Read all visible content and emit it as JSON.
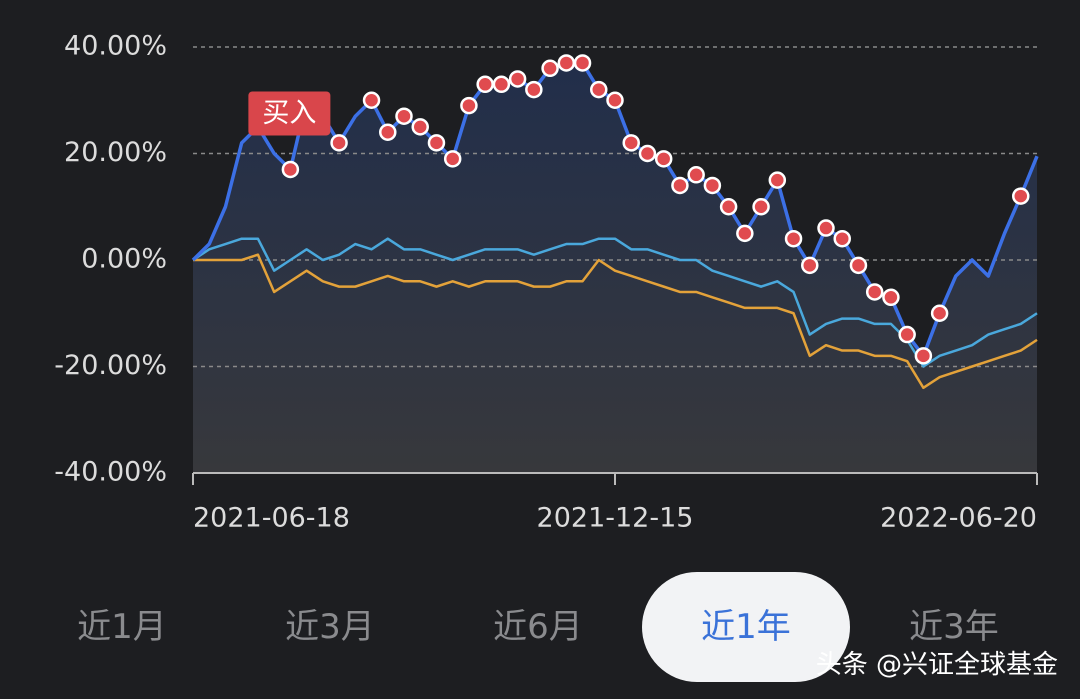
{
  "chart_data": {
    "type": "line",
    "categories": [
      "2021-06-18",
      null,
      null,
      null,
      null,
      null,
      null,
      null,
      null,
      null,
      null,
      null,
      null,
      null,
      null,
      null,
      null,
      null,
      null,
      null,
      null,
      null,
      null,
      null,
      null,
      null,
      "2021-12-15",
      null,
      null,
      null,
      null,
      null,
      null,
      null,
      null,
      null,
      null,
      null,
      null,
      null,
      null,
      null,
      null,
      null,
      null,
      null,
      null,
      null,
      null,
      null,
      null,
      null,
      "2022-06-20"
    ],
    "ylim": [
      -40,
      40
    ],
    "yticks": [
      {
        "value": -40,
        "label": "-40.00%"
      },
      {
        "value": -20,
        "label": "-20.00%"
      },
      {
        "value": 0,
        "label": "0.00%"
      },
      {
        "value": 20,
        "label": "20.00%"
      },
      {
        "value": 40,
        "label": "40.00%"
      }
    ],
    "grid": true,
    "series": [
      {
        "color": "#3c70e6",
        "values": [
          0,
          3,
          10,
          22,
          25,
          20,
          17,
          30,
          27,
          22,
          27,
          30,
          24,
          27,
          25,
          22,
          19,
          29,
          33,
          33,
          34,
          32,
          36,
          37,
          37,
          32,
          30,
          22,
          20,
          19,
          14,
          16,
          14,
          10,
          5,
          10,
          15,
          4,
          -1,
          6,
          4,
          -1,
          -6,
          -7,
          -14,
          -18,
          -10,
          -3,
          0,
          -3,
          5,
          12,
          19.5
        ]
      },
      {
        "color": "#4aa8dc",
        "values": [
          0,
          2,
          3,
          4,
          4,
          -2,
          0,
          2,
          0,
          1,
          3,
          2,
          4,
          2,
          2,
          1,
          0,
          1,
          2,
          2,
          2,
          1,
          2,
          3,
          3,
          4,
          4,
          2,
          2,
          1,
          0,
          0,
          -2,
          -3,
          -4,
          -5,
          -4,
          -6,
          -14,
          -12,
          -11,
          -11,
          -12,
          -12,
          -15,
          -20,
          -18,
          -17,
          -16,
          -14,
          -13,
          -12,
          -10
        ]
      },
      {
        "color": "#e3a23a",
        "values": [
          0,
          0,
          0,
          0,
          1,
          -6,
          -4,
          -2,
          -4,
          -5,
          -5,
          -4,
          -3,
          -4,
          -4,
          -5,
          -4,
          -5,
          -4,
          -4,
          -4,
          -5,
          -5,
          -4,
          -4,
          0,
          -2,
          -3,
          -4,
          -5,
          -6,
          -6,
          -7,
          -8,
          -9,
          -9,
          -9,
          -10,
          -18,
          -16,
          -17,
          -17,
          -18,
          -18,
          -19,
          -24,
          -22,
          -21,
          -20,
          -19,
          -18,
          -17,
          -15
        ]
      },
      {
        "name": "买入",
        "color": "#e04b4f",
        "values": [
          null,
          null,
          null,
          null,
          null,
          null,
          17,
          30,
          null,
          22,
          null,
          30,
          24,
          27,
          25,
          22,
          19,
          29,
          33,
          33,
          34,
          32,
          36,
          37,
          37,
          32,
          30,
          22,
          20,
          19,
          14,
          16,
          14,
          10,
          5,
          10,
          15,
          4,
          -1,
          6,
          4,
          -1,
          -6,
          -7,
          -14,
          -18,
          -10,
          null,
          null,
          null,
          null,
          12,
          null
        ]
      }
    ]
  },
  "tabs": {
    "items": [
      "近1月",
      "近3月",
      "近6月",
      "近1年",
      "近3年"
    ],
    "selected": 3
  },
  "watermark": "头条 @兴证全球基金"
}
